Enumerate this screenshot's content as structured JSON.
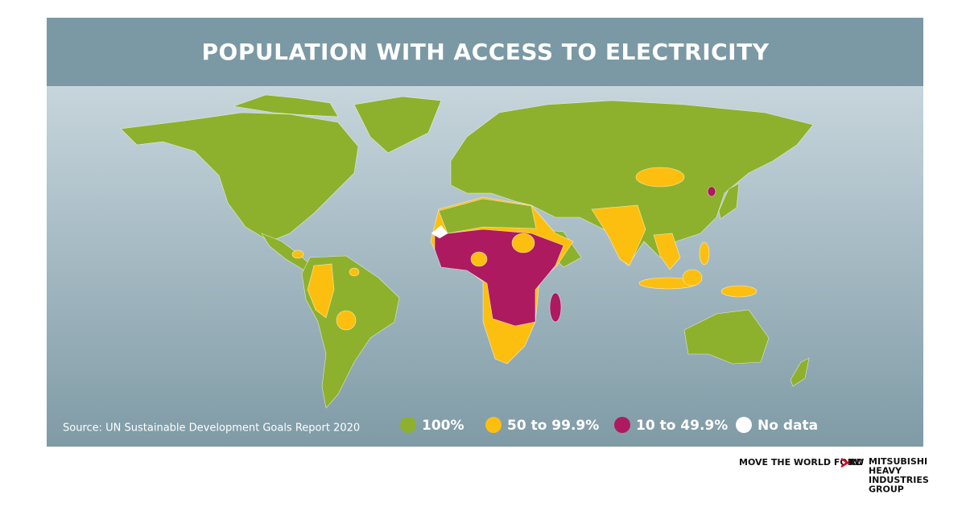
{
  "header": {
    "title": "POPULATION WITH ACCESS TO ELECTRICITY"
  },
  "source": "Source: UN Sustainable Development Goals Report 2020",
  "legend": [
    {
      "label": "100%",
      "color": "#8db12c"
    },
    {
      "label": "50 to 99.9%",
      "color": "#fdbf0f"
    },
    {
      "label": "10 to 49.9%",
      "color": "#ad1a5f"
    },
    {
      "label": "No data",
      "color": "#ffffff"
    }
  ],
  "footer": {
    "tagline": [
      "MOVE THE WORLD FORW",
      "RD"
    ],
    "logo": [
      "MITSUBISHI",
      "HEAVY",
      "INDUSTRIES",
      "GROUP"
    ]
  }
}
